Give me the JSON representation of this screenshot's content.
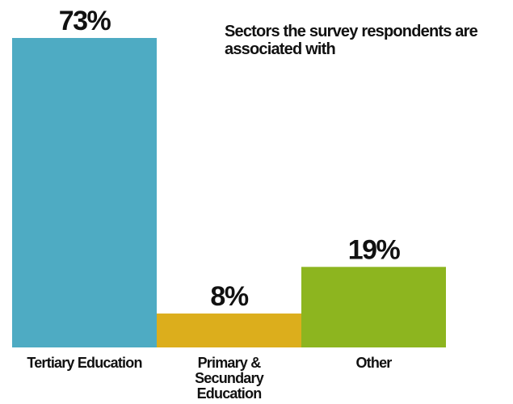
{
  "chart_data": {
    "type": "bar",
    "title": "Sectors the survey respondents are associated with",
    "categories": [
      "Tertiary Education",
      "Primary & Secundary Education",
      "Other"
    ],
    "category_lines": [
      [
        "Tertiary Education"
      ],
      [
        "Primary &",
        "Secundary",
        "Education"
      ],
      [
        "Other"
      ]
    ],
    "values": [
      73,
      8,
      19
    ],
    "value_labels": [
      "73%",
      "8%",
      "19%"
    ],
    "colors": [
      "#4eabc3",
      "#dcae1c",
      "#8db51f"
    ],
    "ylim": [
      0,
      73
    ],
    "xlabel": "",
    "ylabel": "",
    "grid": false,
    "legend": "none"
  }
}
